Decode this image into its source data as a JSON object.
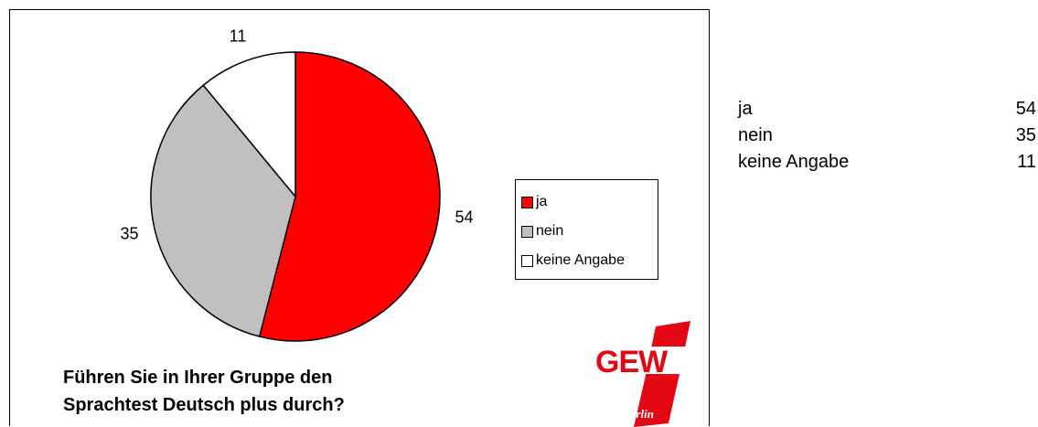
{
  "chart_data": {
    "type": "pie",
    "categories": [
      "ja",
      "nein",
      "keine Angabe"
    ],
    "values": [
      54,
      35,
      11
    ],
    "colors": [
      "#ff0000",
      "#c0c0c0",
      "#ffffff"
    ],
    "title": "Führen Sie in Ihrer Gruppe den Sprachtest Deutsch plus durch?",
    "title_lines": [
      "Führen Sie in Ihrer Gruppe den",
      "Sprachtest Deutsch plus durch?"
    ],
    "legend": {
      "placement": "right",
      "entries": [
        "ja",
        "nein",
        "keine Angabe"
      ]
    }
  },
  "logo": {
    "text": "GEW",
    "subtext": "Berlin",
    "color": "#e30613"
  },
  "side_table": {
    "rows": [
      {
        "label": "ja",
        "value": "54"
      },
      {
        "label": "nein",
        "value": "35"
      },
      {
        "label": "keine Angabe",
        "value": "11"
      }
    ]
  }
}
